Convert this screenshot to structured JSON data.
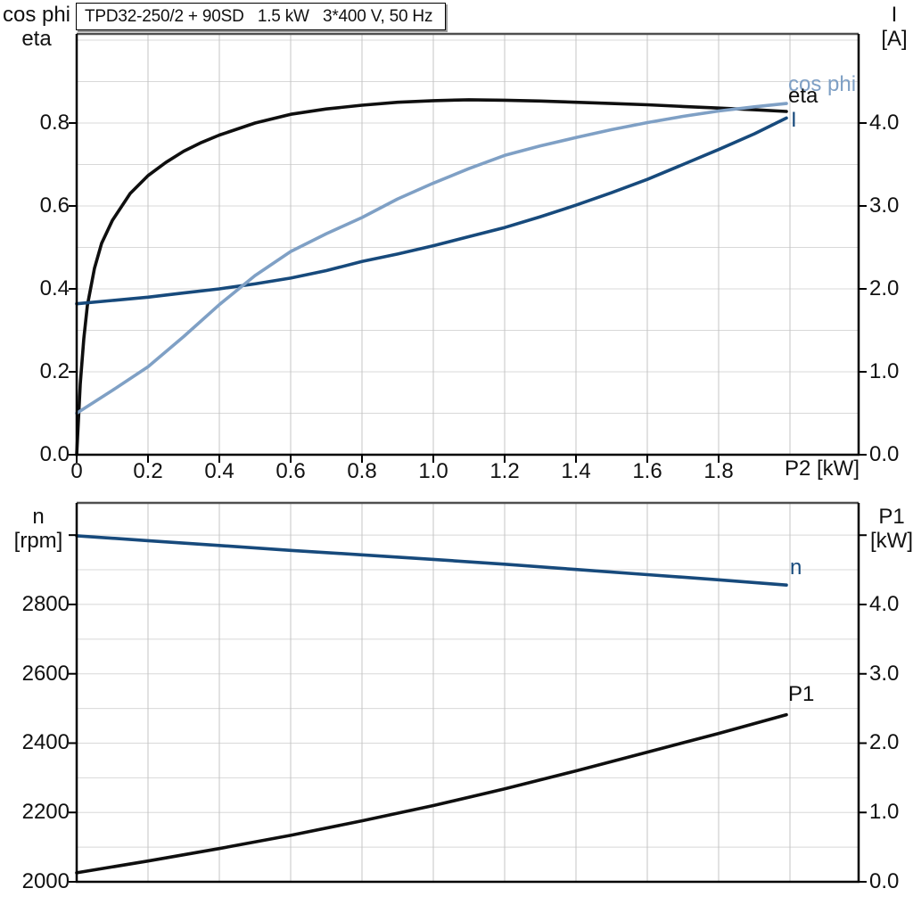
{
  "colors": {
    "background": "#ffffff",
    "grid_horizontal": "#d8d8d8",
    "grid_vertical": "#c4c4c4",
    "axis": "#000000",
    "frame_top": "#4f4f4f",
    "text": "#111111",
    "curve_black": "#0f0f0f",
    "curve_navy": "#174a7c",
    "curve_steel": "#7fa0c5"
  },
  "chart_data": [
    {
      "type": "line",
      "title": "TPD32-250/2 + 90SD   1.5 kW   3*400 V, 50 Hz",
      "grid": true,
      "legend_position": "right-end-of-curves",
      "x_axis": {
        "label": "P2 [kW]",
        "min": 0,
        "max": 2.1925,
        "grid_step": 0.2,
        "ticks": [
          {
            "v": 0,
            "label": "0"
          },
          {
            "v": 0.2,
            "label": "0.2"
          },
          {
            "v": 0.4,
            "label": "0.4"
          },
          {
            "v": 0.6,
            "label": "0.6"
          },
          {
            "v": 0.8,
            "label": "0.8"
          },
          {
            "v": 1.0,
            "label": "1.0"
          },
          {
            "v": 1.2,
            "label": "1.2"
          },
          {
            "v": 1.4,
            "label": "1.4"
          },
          {
            "v": 1.6,
            "label": "1.6"
          },
          {
            "v": 1.8,
            "label": "1.8"
          }
        ]
      },
      "y_left": {
        "header": [
          "cos phi",
          "eta"
        ],
        "min": 0,
        "max": 1.015,
        "minor_step": 0.1,
        "ticks": [
          {
            "v": 0.0,
            "label": "0.0"
          },
          {
            "v": 0.2,
            "label": "0.2"
          },
          {
            "v": 0.4,
            "label": "0.4"
          },
          {
            "v": 0.6,
            "label": "0.6"
          },
          {
            "v": 0.8,
            "label": "0.8"
          }
        ]
      },
      "y_right": {
        "header": [
          "I",
          "[A]"
        ],
        "min": 0,
        "max": 5.075,
        "ticks": [
          {
            "v": 0.0,
            "label": "0.0"
          },
          {
            "v": 1.0,
            "label": "1.0"
          },
          {
            "v": 2.0,
            "label": "2.0"
          },
          {
            "v": 3.0,
            "label": "3.0"
          },
          {
            "v": 4.0,
            "label": "4.0"
          }
        ]
      },
      "series": [
        {
          "id": "eta",
          "label_text": "eta",
          "axis": "left",
          "color": "#0f0f0f",
          "points": [
            [
              0,
              0
            ],
            [
              0.01,
              0.17
            ],
            [
              0.02,
              0.28
            ],
            [
              0.03,
              0.36
            ],
            [
              0.05,
              0.45
            ],
            [
              0.07,
              0.51
            ],
            [
              0.1,
              0.565
            ],
            [
              0.15,
              0.63
            ],
            [
              0.2,
              0.673
            ],
            [
              0.25,
              0.705
            ],
            [
              0.3,
              0.732
            ],
            [
              0.35,
              0.753
            ],
            [
              0.4,
              0.771
            ],
            [
              0.5,
              0.8
            ],
            [
              0.6,
              0.821
            ],
            [
              0.7,
              0.834
            ],
            [
              0.8,
              0.843
            ],
            [
              0.9,
              0.85
            ],
            [
              1.0,
              0.854
            ],
            [
              1.1,
              0.856
            ],
            [
              1.2,
              0.855
            ],
            [
              1.3,
              0.853
            ],
            [
              1.4,
              0.85
            ],
            [
              1.5,
              0.847
            ],
            [
              1.6,
              0.844
            ],
            [
              1.7,
              0.84
            ],
            [
              1.8,
              0.836
            ],
            [
              1.9,
              0.832
            ],
            [
              1.99,
              0.828
            ]
          ]
        },
        {
          "id": "current",
          "label_text": "I",
          "axis": "right",
          "color": "#174a7c",
          "points": [
            [
              0,
              1.82
            ],
            [
              0.1,
              1.86
            ],
            [
              0.2,
              1.9
            ],
            [
              0.3,
              1.95
            ],
            [
              0.4,
              2.0
            ],
            [
              0.5,
              2.06
            ],
            [
              0.6,
              2.13
            ],
            [
              0.7,
              2.22
            ],
            [
              0.8,
              2.33
            ],
            [
              0.9,
              2.42
            ],
            [
              1.0,
              2.52
            ],
            [
              1.1,
              2.63
            ],
            [
              1.2,
              2.74
            ],
            [
              1.3,
              2.87
            ],
            [
              1.4,
              3.01
            ],
            [
              1.5,
              3.16
            ],
            [
              1.6,
              3.32
            ],
            [
              1.7,
              3.5
            ],
            [
              1.8,
              3.68
            ],
            [
              1.9,
              3.87
            ],
            [
              1.99,
              4.06
            ]
          ]
        },
        {
          "id": "cos-phi",
          "label_text": "cos phi",
          "axis": "left",
          "color": "#7fa0c5",
          "points": [
            [
              0,
              0.1
            ],
            [
              0.1,
              0.155
            ],
            [
              0.2,
              0.212
            ],
            [
              0.3,
              0.285
            ],
            [
              0.4,
              0.362
            ],
            [
              0.5,
              0.432
            ],
            [
              0.6,
              0.49
            ],
            [
              0.7,
              0.533
            ],
            [
              0.8,
              0.572
            ],
            [
              0.9,
              0.617
            ],
            [
              1.0,
              0.655
            ],
            [
              1.1,
              0.69
            ],
            [
              1.2,
              0.722
            ],
            [
              1.3,
              0.745
            ],
            [
              1.4,
              0.765
            ],
            [
              1.5,
              0.784
            ],
            [
              1.6,
              0.801
            ],
            [
              1.7,
              0.816
            ],
            [
              1.8,
              0.829
            ],
            [
              1.9,
              0.839
            ],
            [
              1.99,
              0.847
            ]
          ]
        }
      ]
    },
    {
      "type": "line",
      "title": "",
      "grid": true,
      "legend_position": "right-end-of-curves",
      "x_axis": {
        "label": "",
        "min": 0,
        "max": 2.1925,
        "grid_step": 0.2,
        "ticks": []
      },
      "y_left": {
        "header": [
          "n",
          "[rpm]"
        ],
        "min": 2000,
        "max": 3093,
        "minor_step": 100,
        "ticks": [
          {
            "v": 2000,
            "label": "2000"
          },
          {
            "v": 2200,
            "label": "2200"
          },
          {
            "v": 2400,
            "label": "2400"
          },
          {
            "v": 2600,
            "label": "2600"
          },
          {
            "v": 2800,
            "label": "2800"
          },
          {
            "v": 3000,
            "label": ""
          }
        ]
      },
      "y_right": {
        "header": [
          "P1",
          "[kW]"
        ],
        "min": 0,
        "max": 5.466,
        "ticks": [
          {
            "v": 0.0,
            "label": "0.0"
          },
          {
            "v": 1.0,
            "label": "1.0"
          },
          {
            "v": 2.0,
            "label": "2.0"
          },
          {
            "v": 3.0,
            "label": "3.0"
          },
          {
            "v": 4.0,
            "label": "4.0"
          },
          {
            "v": 5.0,
            "label": ""
          }
        ]
      },
      "series": [
        {
          "id": "speed",
          "label_text": "n",
          "axis": "left",
          "color": "#174a7c",
          "points": [
            [
              0,
              2998
            ],
            [
              0.2,
              2984
            ],
            [
              0.4,
              2970
            ],
            [
              0.6,
              2956
            ],
            [
              0.8,
              2943
            ],
            [
              1.0,
              2930
            ],
            [
              1.2,
              2916
            ],
            [
              1.4,
              2901
            ],
            [
              1.6,
              2886
            ],
            [
              1.8,
              2871
            ],
            [
              1.99,
              2856
            ]
          ]
        },
        {
          "id": "p1",
          "label_text": "P1",
          "axis": "right",
          "color": "#0f0f0f",
          "points": [
            [
              0,
              0.13
            ],
            [
              0.2,
              0.3
            ],
            [
              0.4,
              0.48
            ],
            [
              0.6,
              0.67
            ],
            [
              0.8,
              0.88
            ],
            [
              1.0,
              1.1
            ],
            [
              1.2,
              1.34
            ],
            [
              1.4,
              1.6
            ],
            [
              1.6,
              1.87
            ],
            [
              1.8,
              2.14
            ],
            [
              1.99,
              2.41
            ]
          ]
        }
      ]
    }
  ]
}
